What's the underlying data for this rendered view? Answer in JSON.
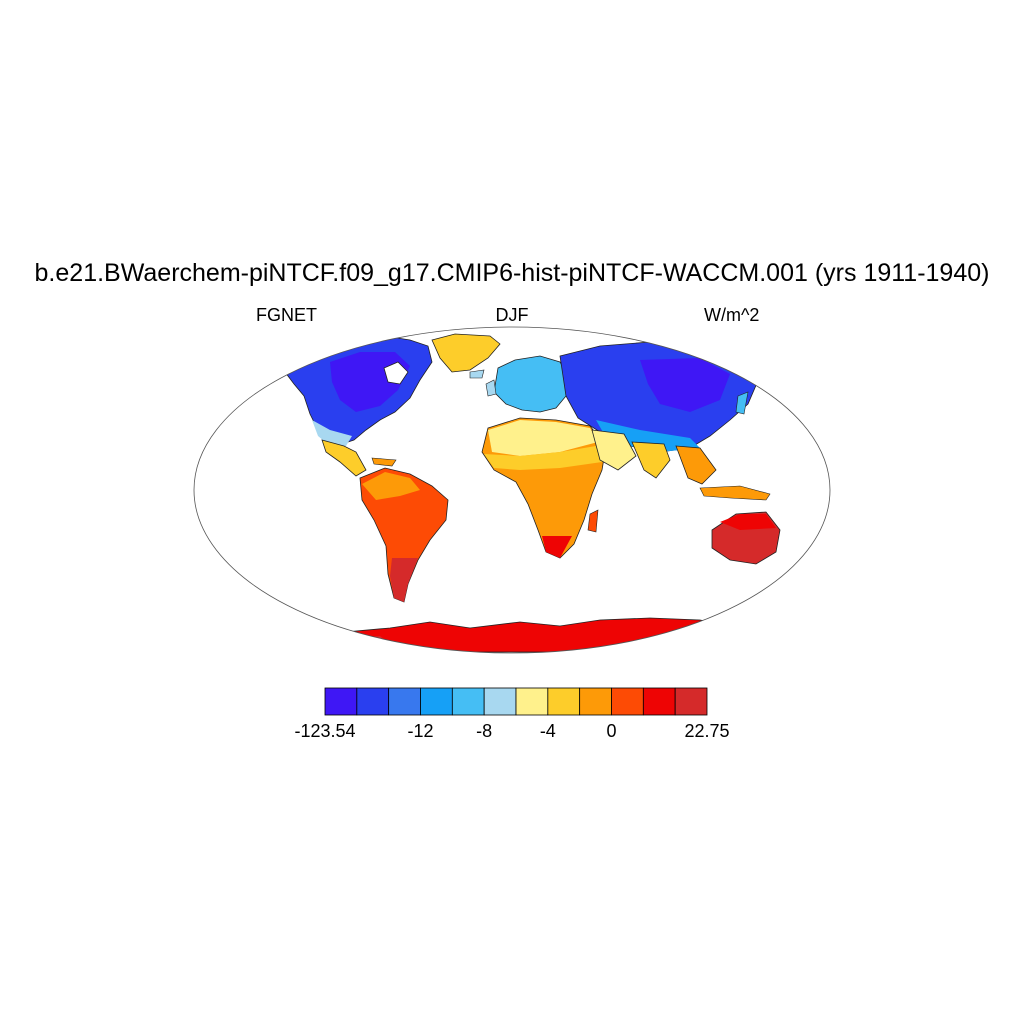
{
  "title": "b.e21.BWaerchem-piNTCF.f09_g17.CMIP6-hist-piNTCF-WACCM.001 (yrs 1911-1940)",
  "subtitle_left": "FGNET",
  "subtitle_center": "DJF",
  "subtitle_right": "W/m^2",
  "colorbar": {
    "colors": [
      "#3f17f5",
      "#2a3fef",
      "#3878ee",
      "#16a0f6",
      "#45bef4",
      "#a8d8f0",
      "#fff18c",
      "#fdcd2a",
      "#fd9a08",
      "#fd4b05",
      "#ee0404",
      "#d52a2a"
    ],
    "labels": [
      {
        "text": "-123.54",
        "boundary": 0
      },
      {
        "text": "-12",
        "boundary": 3
      },
      {
        "text": "-8",
        "boundary": 5
      },
      {
        "text": "-4",
        "boundary": 7
      },
      {
        "text": "0",
        "boundary": 9
      },
      {
        "text": "22.75",
        "boundary": 12
      }
    ]
  }
}
